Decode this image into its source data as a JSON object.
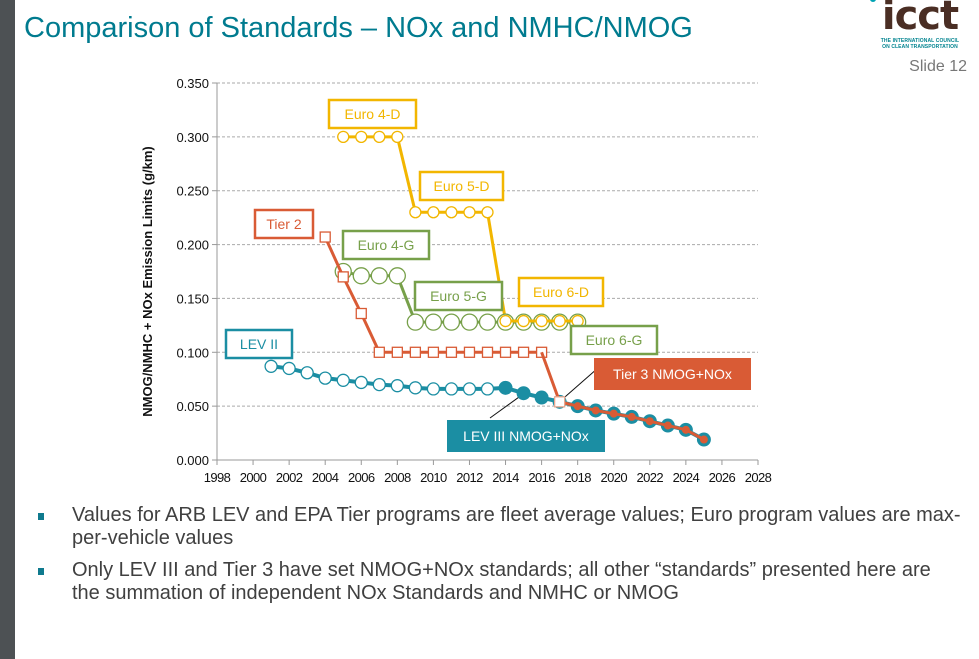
{
  "slide": {
    "title": "Comparison of Standards – NOx and NMHC/NMOG",
    "logo": {
      "name": "icct",
      "subtitle_line1": "THE INTERNATIONAL COUNCIL",
      "subtitle_line2": "ON CLEAN TRANSPORTATION"
    },
    "slide_number": "Slide 12",
    "bullets": [
      "Values for ARB LEV and EPA Tier programs are fleet average values; Euro program values are max-per-vehicle values",
      "Only LEV III and Tier 3 have set NMOG+NOx standards; all other “standards” presented here are the summation of independent NOx Standards and NMHC or NMOG"
    ]
  },
  "chart_data": {
    "type": "line",
    "title": "",
    "xlabel": "",
    "ylabel": "NMOG/NMHC + NOx Emission Limits (g/km)",
    "xlim": [
      1998,
      2028
    ],
    "ylim": [
      0,
      0.35
    ],
    "grid": true,
    "x_ticks": [
      "1998",
      "2000",
      "2002",
      "2004",
      "2006",
      "2008",
      "2010",
      "2012",
      "2014",
      "2016",
      "2018",
      "2020",
      "2022",
      "2024",
      "2026",
      "2028"
    ],
    "y_ticks": [
      "0.000",
      "0.050",
      "0.100",
      "0.150",
      "0.200",
      "0.250",
      "0.300",
      "0.350"
    ],
    "colors": {
      "lev": "#1b8ea3",
      "tier": "#d95b35",
      "euro_g": "#77a04a",
      "euro_d": "#f2b600"
    },
    "series": [
      {
        "name": "Euro 4-D",
        "color": "#f2b600",
        "marker": "circle-open",
        "x": [
          2005,
          2006,
          2007,
          2008
        ],
        "y": [
          0.3,
          0.3,
          0.3,
          0.3
        ]
      },
      {
        "name": "Euro 5-D",
        "color": "#f2b600",
        "marker": "circle-open",
        "x": [
          2009,
          2010,
          2011,
          2012,
          2013
        ],
        "y": [
          0.23,
          0.23,
          0.23,
          0.23,
          0.23
        ]
      },
      {
        "name": "Euro 6-D",
        "color": "#f2b600",
        "marker": "circle-open",
        "x": [
          2014,
          2015,
          2016,
          2017,
          2018
        ],
        "y": [
          0.129,
          0.129,
          0.129,
          0.129,
          0.129
        ]
      },
      {
        "name": "Euro 4-G",
        "color": "#77a04a",
        "marker": "circle-open-large",
        "x": [
          2005,
          2006,
          2007,
          2008
        ],
        "y": [
          0.175,
          0.171,
          0.171,
          0.171
        ]
      },
      {
        "name": "Euro 5-G",
        "color": "#77a04a",
        "marker": "circle-open-large",
        "x": [
          2009,
          2010,
          2011,
          2012,
          2013
        ],
        "y": [
          0.128,
          0.128,
          0.128,
          0.128,
          0.128
        ]
      },
      {
        "name": "Euro 6-G",
        "color": "#77a04a",
        "marker": "circle-open-large",
        "x": [
          2014,
          2015,
          2016,
          2017,
          2018
        ],
        "y": [
          0.128,
          0.128,
          0.128,
          0.128,
          0.128
        ]
      },
      {
        "name": "Tier 2",
        "color": "#d95b35",
        "marker": "square-open",
        "x": [
          2004,
          2005,
          2006,
          2007,
          2008,
          2009,
          2010,
          2011,
          2012,
          2013,
          2014,
          2015,
          2016
        ],
        "y": [
          0.207,
          0.17,
          0.136,
          0.1,
          0.1,
          0.1,
          0.1,
          0.1,
          0.1,
          0.1,
          0.1,
          0.1,
          0.1
        ]
      },
      {
        "name": "LEV II",
        "color": "#1b8ea3",
        "marker": "circle-open",
        "x": [
          2001,
          2002,
          2003,
          2004,
          2005,
          2006,
          2007,
          2008,
          2009,
          2010,
          2011,
          2012,
          2013,
          2014
        ],
        "y": [
          0.087,
          0.085,
          0.081,
          0.076,
          0.074,
          0.072,
          0.07,
          0.069,
          0.067,
          0.066,
          0.066,
          0.066,
          0.066,
          0.067
        ]
      },
      {
        "name": "LEV III NMOG+NOx",
        "color": "#1b8ea3",
        "marker": "circle-filled",
        "x": [
          2014,
          2015,
          2016,
          2017,
          2018,
          2019,
          2020,
          2021,
          2022,
          2023,
          2024,
          2025
        ],
        "y": [
          0.067,
          0.062,
          0.058,
          0.054,
          0.05,
          0.046,
          0.043,
          0.04,
          0.036,
          0.032,
          0.028,
          0.019
        ]
      },
      {
        "name": "Tier 3 NMOG+NOx",
        "color": "#d95b35",
        "marker": "circle-small-filled",
        "x": [
          2016,
          2017,
          2018,
          2019,
          2020,
          2021,
          2022,
          2023,
          2024,
          2025
        ],
        "y": [
          0.1,
          0.054,
          0.05,
          0.046,
          0.043,
          0.04,
          0.036,
          0.032,
          0.028,
          0.019
        ]
      }
    ],
    "annotations": [
      {
        "label": "Euro 4-D",
        "style": "outline",
        "color": "#f2b600"
      },
      {
        "label": "Euro 5-D",
        "style": "outline",
        "color": "#f2b600"
      },
      {
        "label": "Euro 6-D",
        "style": "outline",
        "color": "#f2b600"
      },
      {
        "label": "Tier 2",
        "style": "outline",
        "color": "#d95b35"
      },
      {
        "label": "Euro 4-G",
        "style": "outline",
        "color": "#77a04a"
      },
      {
        "label": "Euro 5-G",
        "style": "outline",
        "color": "#77a04a"
      },
      {
        "label": "Euro 6-G",
        "style": "outline",
        "color": "#77a04a"
      },
      {
        "label": "LEV II",
        "style": "outline",
        "color": "#1b8ea3"
      },
      {
        "label": "Tier 3 NMOG+NOx",
        "style": "filled",
        "color": "#d95b35"
      },
      {
        "label": "LEV III NMOG+NOx",
        "style": "filled",
        "color": "#1b8ea3"
      }
    ]
  }
}
